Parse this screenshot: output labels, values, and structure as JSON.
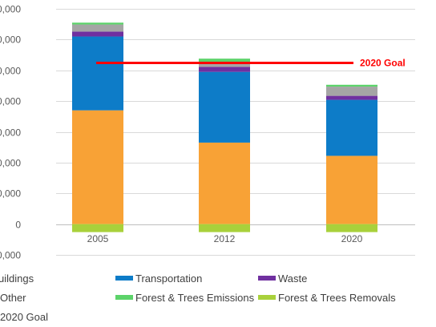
{
  "chart_data": {
    "type": "bar",
    "stacked": true,
    "categories": [
      "2005",
      "2012",
      "2020"
    ],
    "y_tick_labels": [
      "0,000",
      "0,000",
      "0,000",
      "0,000",
      "0,000",
      "0,000",
      "0,000",
      "0",
      "0,000"
    ],
    "y_tick_values": [
      7000,
      6000,
      5000,
      4000,
      3000,
      2000,
      1000,
      0,
      -1000
    ],
    "ylim": [
      -1000,
      7000
    ],
    "grid": true,
    "legend_position": "bottom",
    "series": [
      {
        "name": "Buildings",
        "values": [
          3700,
          2650,
          2220
        ],
        "color": "#F8A236"
      },
      {
        "name": "Transportation",
        "values": [
          2400,
          2300,
          1820
        ],
        "color": "#0D7CC8"
      },
      {
        "name": "Waste",
        "values": [
          160,
          160,
          130
        ],
        "color": "#7030A0"
      },
      {
        "name": "Other",
        "values": [
          230,
          160,
          300
        ],
        "color": "#A5A5A5"
      },
      {
        "name": "Forest & Trees Emissions",
        "values": [
          60,
          110,
          60
        ],
        "color": "#5CD36A"
      },
      {
        "name": "Forest & Trees Removals",
        "values": [
          -260,
          -260,
          -260
        ],
        "color": "#A9D13B"
      }
    ],
    "goal": {
      "name": "2020 Goal",
      "value": 5240,
      "label": "2020 Goal",
      "color": "#FF0000"
    }
  },
  "legend": {
    "row1": [
      "uildings",
      "Transportation",
      "Waste"
    ],
    "row2": [
      "Other",
      "Forest & Trees Emissions",
      "Forest & Trees Removals"
    ],
    "row3": [
      "2020 Goal"
    ]
  }
}
